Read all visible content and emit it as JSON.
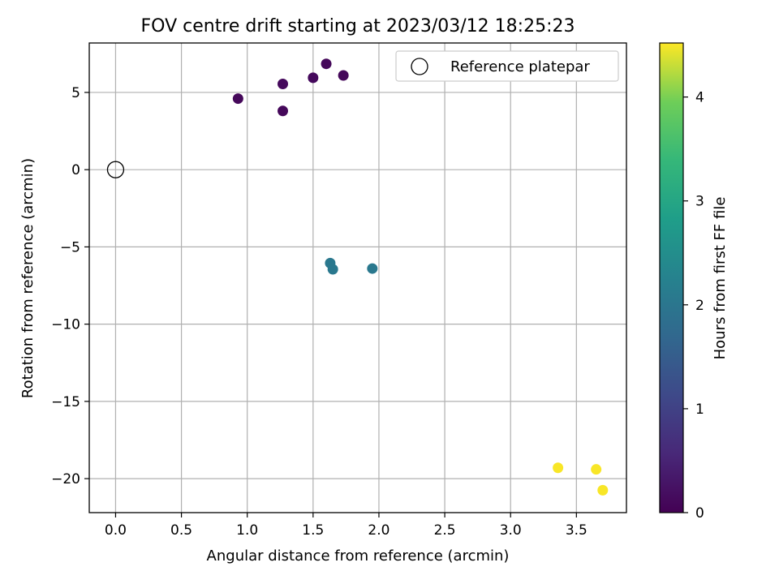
{
  "chart_data": {
    "type": "scatter",
    "title": "FOV centre drift starting at 2023/03/12 18:25:23",
    "xlabel": "Angular distance from reference (arcmin)",
    "ylabel": "Rotation from reference (arcmin)",
    "xlim": [
      -0.2,
      3.88
    ],
    "ylim": [
      -22.2,
      8.2
    ],
    "xticks": [
      0.0,
      0.5,
      1.0,
      1.5,
      2.0,
      2.5,
      3.0,
      3.5
    ],
    "xtick_labels": [
      "0.0",
      "0.5",
      "1.0",
      "1.5",
      "2.0",
      "2.5",
      "3.0",
      "3.5"
    ],
    "yticks": [
      5,
      0,
      -5,
      -10,
      -15,
      -20
    ],
    "ytick_labels": [
      "5",
      "0",
      "−5",
      "−10",
      "−15",
      "−20"
    ],
    "grid": true,
    "legend": {
      "position": "top-right",
      "entries": [
        "Reference platepar"
      ]
    },
    "reference_point": {
      "x": 0.0,
      "y": 0.0,
      "label": "Reference platepar"
    },
    "colormap": "viridis",
    "colorbar": {
      "label": "Hours from first FF file",
      "range": [
        0,
        4.52
      ],
      "ticks": [
        0,
        1,
        2,
        3,
        4
      ],
      "tick_labels": [
        "0",
        "1",
        "2",
        "3",
        "4"
      ]
    },
    "points": [
      {
        "x": 0.93,
        "y": 4.6,
        "hours": 0.1
      },
      {
        "x": 1.27,
        "y": 5.55,
        "hours": 0.12
      },
      {
        "x": 1.27,
        "y": 3.8,
        "hours": 0.1
      },
      {
        "x": 1.5,
        "y": 5.95,
        "hours": 0.12
      },
      {
        "x": 1.6,
        "y": 6.85,
        "hours": 0.1
      },
      {
        "x": 1.73,
        "y": 6.1,
        "hours": 0.1
      },
      {
        "x": 1.63,
        "y": -6.05,
        "hours": 2.05
      },
      {
        "x": 1.65,
        "y": -6.45,
        "hours": 2.05
      },
      {
        "x": 1.95,
        "y": -6.4,
        "hours": 2.05
      },
      {
        "x": 3.36,
        "y": -19.3,
        "hours": 4.5
      },
      {
        "x": 3.65,
        "y": -19.4,
        "hours": 4.5
      },
      {
        "x": 3.7,
        "y": -20.75,
        "hours": 4.5
      }
    ]
  }
}
